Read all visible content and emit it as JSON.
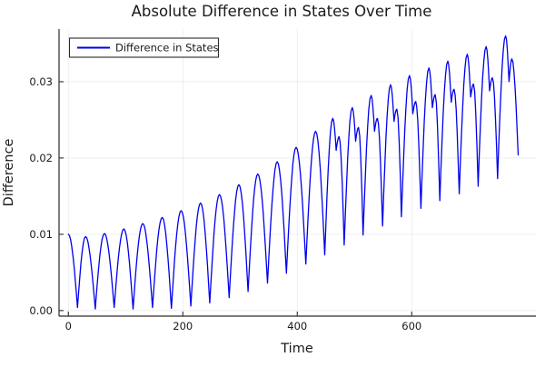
{
  "chart_data": {
    "type": "line",
    "title": "Absolute Difference in States Over Time",
    "xlabel": "Time",
    "ylabel": "Difference",
    "grid": true,
    "background": "#ffffff",
    "frame": "left-bottom",
    "xlim": [
      -16.3,
      817
    ],
    "ylim": [
      -0.00073,
      0.0369
    ],
    "xticks": [
      {
        "value": 0,
        "label": "0"
      },
      {
        "value": 200,
        "label": "200"
      },
      {
        "value": 400,
        "label": "400"
      },
      {
        "value": 600,
        "label": "600"
      }
    ],
    "yticks": [
      {
        "value": 0.0,
        "label": "0.00"
      },
      {
        "value": 0.01,
        "label": "0.01"
      },
      {
        "value": 0.02,
        "label": "0.02"
      },
      {
        "value": 0.03,
        "label": "0.03"
      }
    ],
    "legend": {
      "position": "top-left",
      "entries": [
        {
          "label": "Difference in States",
          "color": "#0000ee"
        }
      ]
    },
    "series": [
      {
        "name": "Difference in States",
        "color": "#0000ee",
        "line_width": 1.3,
        "interpolation": "abs-sine",
        "description": "Absolute difference |state1-state2| oscillating with period ~33 time units; peak envelope grows from 0.010 to 0.036, troughs near 0 until t~230 then rising to ~0.017; cycles beyond t~450 show a notch and secondary shoulder peak; data ends mid-descent at t~786.",
        "points": [
          [
            0,
            0.01
          ],
          [
            16,
            0.0004
          ],
          [
            30,
            0.0097
          ],
          [
            47,
            0.0002
          ],
          [
            63,
            0.0101
          ],
          [
            80,
            0.0004
          ],
          [
            97,
            0.0107
          ],
          [
            113,
            0.0002
          ],
          [
            130,
            0.0114
          ],
          [
            147,
            0.0004
          ],
          [
            164,
            0.0122
          ],
          [
            180,
            0.0003
          ],
          [
            197,
            0.0131
          ],
          [
            214,
            0.0006
          ],
          [
            231,
            0.0141
          ],
          [
            247,
            0.001
          ],
          [
            264,
            0.0152
          ],
          [
            281,
            0.0017
          ],
          [
            298,
            0.0165
          ],
          [
            314,
            0.0025
          ],
          [
            331,
            0.0179
          ],
          [
            348,
            0.0036
          ],
          [
            365,
            0.0195
          ],
          [
            381,
            0.0049
          ],
          [
            398,
            0.0214
          ],
          [
            415,
            0.0061
          ],
          [
            432,
            0.0235
          ],
          [
            448,
            0.0073
          ],
          [
            462,
            0.0252
          ],
          [
            468,
            0.021
          ],
          [
            473,
            0.0228
          ],
          [
            482,
            0.0086
          ],
          [
            496,
            0.0266
          ],
          [
            502,
            0.0222
          ],
          [
            507,
            0.024
          ],
          [
            515,
            0.0099
          ],
          [
            529,
            0.0282
          ],
          [
            535,
            0.0235
          ],
          [
            540,
            0.0252
          ],
          [
            549,
            0.0111
          ],
          [
            563,
            0.0296
          ],
          [
            569,
            0.0248
          ],
          [
            574,
            0.0264
          ],
          [
            582,
            0.0123
          ],
          [
            596,
            0.0308
          ],
          [
            602,
            0.0258
          ],
          [
            607,
            0.0274
          ],
          [
            616,
            0.0134
          ],
          [
            630,
            0.0318
          ],
          [
            636,
            0.0266
          ],
          [
            641,
            0.0283
          ],
          [
            649,
            0.0144
          ],
          [
            663,
            0.0327
          ],
          [
            669,
            0.0273
          ],
          [
            674,
            0.029
          ],
          [
            683,
            0.0153
          ],
          [
            697,
            0.0336
          ],
          [
            703,
            0.028
          ],
          [
            708,
            0.0297
          ],
          [
            716,
            0.0163
          ],
          [
            730,
            0.0346
          ],
          [
            736,
            0.0288
          ],
          [
            741,
            0.0305
          ],
          [
            750,
            0.0173
          ],
          [
            764,
            0.036
          ],
          [
            770,
            0.03
          ],
          [
            775,
            0.033
          ],
          [
            786,
            0.0204
          ]
        ]
      }
    ],
    "colors": {
      "line": "#0000ee",
      "grid": "rgba(0,0,0,0.08)",
      "frame": "#2b2b2b",
      "text": "#1a1a1a"
    }
  }
}
